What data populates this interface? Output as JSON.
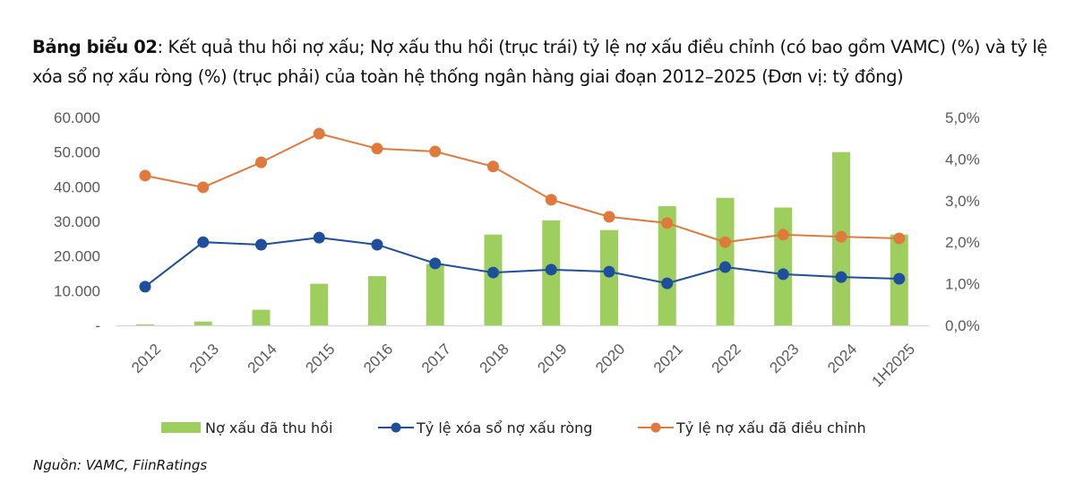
{
  "header": {
    "title_bold": "Bảng biểu 02",
    "title_rest": ": Kết quả thu hồi nợ xấu; Nợ xấu thu hồi (trục trái) tỷ lệ nợ xấu điều chỉnh (có bao gồm VAMC) (%) và tỷ lệ xóa sổ nợ xấu ròng (%) (trục phải) của toàn hệ thống ngân hàng giai đoạn 2012–2025 (Đơn vị: tỷ đồng)"
  },
  "source": "Nguồn: VAMC, FiinRatings",
  "colors": {
    "bar": "#9ecf5e",
    "blue": "#1f4e9c",
    "orange": "#e07a3c",
    "axis_text": "#595959",
    "baseline": "#d9d9d9"
  },
  "chart_data": {
    "type": "bar+line",
    "title": "",
    "categories": [
      "2012",
      "2013",
      "2014",
      "2015",
      "2016",
      "2017",
      "2018",
      "2019",
      "2020",
      "2021",
      "2022",
      "2023",
      "2024",
      "1H2025"
    ],
    "series": [
      {
        "name": "Nợ xấu đã thu hồi",
        "type": "bar",
        "axis": "left",
        "values": [
          300,
          1100,
          4500,
          12000,
          14200,
          17700,
          26200,
          30300,
          27500,
          34400,
          36800,
          34000,
          50000,
          26200
        ]
      },
      {
        "name": "Tỷ lệ xóa sổ nợ xấu ròng",
        "type": "line",
        "axis": "right",
        "values": [
          0.93,
          2.0,
          1.94,
          2.11,
          1.94,
          1.49,
          1.27,
          1.34,
          1.29,
          1.01,
          1.4,
          1.23,
          1.16,
          1.12
        ]
      },
      {
        "name": "Tỷ lệ nợ xấu đã điều chỉnh",
        "type": "line",
        "axis": "right",
        "values": [
          3.6,
          3.32,
          3.92,
          4.61,
          4.25,
          4.18,
          3.82,
          3.02,
          2.61,
          2.46,
          2.0,
          2.18,
          2.13,
          2.09
        ]
      }
    ],
    "left_axis": {
      "ylim": [
        0,
        60000
      ],
      "ticks": [
        0,
        10000,
        20000,
        30000,
        40000,
        50000,
        60000
      ],
      "tick_labels": [
        "-",
        "10.000",
        "20.000",
        "30.000",
        "40.000",
        "50.000",
        "60.000"
      ]
    },
    "right_axis": {
      "ylim": [
        0,
        5
      ],
      "ticks": [
        0,
        1,
        2,
        3,
        4,
        5
      ],
      "tick_labels": [
        "0,0%",
        "1,0%",
        "2,0%",
        "3,0%",
        "4,0%",
        "5,0%"
      ]
    },
    "xlabel": "",
    "ylabel": "",
    "grid": false,
    "legend": "bottom"
  }
}
